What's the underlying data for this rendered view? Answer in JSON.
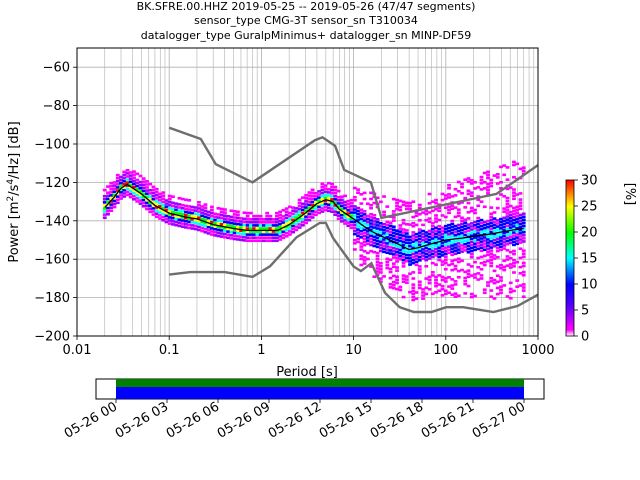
{
  "title_lines": [
    "BK.SFRE.00.HHZ   2019-05-25 -- 2019-05-26  (47/47 segments)",
    "sensor_type CMG-3T sensor_sn T310034",
    "datalogger_type GuralpMinimus+ datalogger_sn MINP-DF59"
  ],
  "colorbar": {
    "label": "[%]",
    "ticks": [
      "0",
      "5",
      "10",
      "15",
      "20",
      "25",
      "30"
    ],
    "range": [
      0,
      30
    ]
  },
  "timeline": {
    "ticks": [
      "05-26 00",
      "05-26 03",
      "05-26 06",
      "05-26 09",
      "05-26 12",
      "05-26 15",
      "05-26 18",
      "05-26 21",
      "05-27 00"
    ],
    "bar_colors": [
      "#008000",
      "#0000ff"
    ]
  },
  "chart_data": {
    "type": "heatmap",
    "xlabel": "Period [s]",
    "ylabel_parts": [
      "Power [m",
      "2",
      "/s",
      "4",
      "/Hz] [dB]"
    ],
    "x_scale": "log",
    "xlim": [
      0.01,
      1000
    ],
    "ylim": [
      -200,
      -50
    ],
    "x_ticks": [
      "0.01",
      "0.1",
      "1",
      "10",
      "100",
      "1000"
    ],
    "y_ticks": [
      "−60",
      "−80",
      "−100",
      "−120",
      "−140",
      "−160",
      "−180",
      "−200"
    ],
    "grid": true,
    "colormap": [
      "#ffffff",
      "#ff00ff",
      "#0000ff",
      "#00ffff",
      "#00ff00",
      "#ffff00",
      "#ff0000"
    ],
    "nlnm_ref": {
      "x": [
        0.1,
        0.17,
        0.4,
        0.8,
        1.24,
        2.4,
        4.3,
        5.0,
        6.0,
        10.0,
        12.0,
        15.6,
        21.9,
        31.6,
        45.0,
        70.0,
        101.0,
        154.0,
        328.0,
        600.0,
        1000.0
      ],
      "y": [
        -168,
        -166.7,
        -166.7,
        -169.2,
        -163.7,
        -148.6,
        -141.1,
        -141.1,
        -149.0,
        -163.8,
        -166.2,
        -162.1,
        -177.5,
        -185.0,
        -187.5,
        -187.5,
        -185.0,
        -185.0,
        -187.5,
        -184.4,
        -178.5
      ]
    },
    "nhnm_ref": {
      "x": [
        0.1,
        0.22,
        0.32,
        0.8,
        3.8,
        4.6,
        6.3,
        7.9,
        15.4,
        20.0,
        354.8,
        1000.0
      ],
      "y": [
        -91.5,
        -97.4,
        -110.5,
        -120.0,
        -98.0,
        -96.5,
        -101.0,
        -113.5,
        -120.0,
        -138.5,
        -126.0,
        -111.0
      ]
    },
    "mode_series": {
      "x": [
        0.02,
        0.025,
        0.03,
        0.035,
        0.05,
        0.07,
        0.1,
        0.15,
        0.2,
        0.3,
        0.5,
        0.7,
        1.0,
        1.5,
        2.0,
        3.0,
        4.0,
        5.0,
        6.0,
        7.0,
        10.0,
        15.0,
        20.0,
        30.0,
        40.0,
        50.0,
        70.0,
        100.0,
        150.0,
        200.0,
        300.0,
        500.0,
        700.0
      ],
      "y": [
        -133,
        -128,
        -123,
        -121,
        -126,
        -132,
        -136,
        -138,
        -139,
        -142,
        -144,
        -145,
        -145,
        -145,
        -142,
        -136,
        -131,
        -129,
        -130,
        -134,
        -139,
        -145,
        -148,
        -152,
        -155,
        -154,
        -152,
        -150,
        -149,
        -148,
        -147,
        -145,
        -144
      ]
    }
  }
}
